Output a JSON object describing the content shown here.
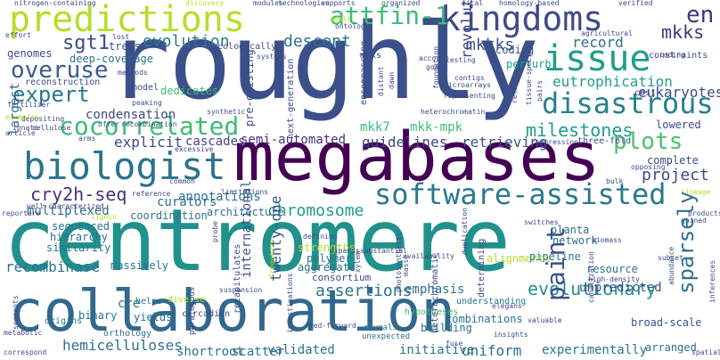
{
  "palette": {
    "background": "#ffffff",
    "dark_purple": "#440154",
    "indigo": "#3e4989",
    "blue": "#3b528b",
    "steel_blue": "#31688e",
    "teal": "#21918c",
    "green": "#3dbc74",
    "lime": "#b5de2b"
  },
  "words": {
    "roughly": "roughly",
    "centromere": "centromere",
    "megabases": "megabases",
    "collaboration": "collaboration",
    "biologist": "biologist",
    "predictions": "predictions",
    "kingdoms": "kingdoms",
    "software_assisted": "software-assisted",
    "disastrous": "disastrous",
    "issue": "issue",
    "cocorrelated": "cocorrelated",
    "overuse": "overuse",
    "expert": "expert",
    "attfin_1": "attfin-1",
    "cry2h_seq": "cry2h-seq",
    "plots": "plots",
    "paint": "paint",
    "sparsely": "sparsely",
    "evolutionary": "evolutionary",
    "milestones": "milestones",
    "eutrophication": "eutrophication",
    "sgt1": "sgt1",
    "en": "en",
    "mkks": "mkks",
    "mkkks": "mkkks",
    "evolution": "evolution",
    "descent": "descent",
    "chromosome": "chromosome",
    "project": "project",
    "assertions": "assertions",
    "hemicelluloses": "hemicelluloses",
    "revolution": "revolution",
    "eukaryotes": "eukaryotes",
    "semi_automated": "semi-automated",
    "recombinase": "recombinase",
    "guidelines": "guidelines",
    "retrieving": "retrieving",
    "explicit": "explicit",
    "condensation": "condensation",
    "cascades": "cascades",
    "multiplexed": "multiplexed",
    "uniform": "uniform",
    "initiative": "initiative",
    "scatter": "scatter",
    "validated": "validated",
    "shortroot": "shortroot",
    "experimentally": "experimentally",
    "twenty_one": "twenty-one",
    "international": "international",
    "mkk7": "mkk7",
    "mkk_mpk": "mkk-mpk",
    "perturb": "perturb",
    "coding": "coding",
    "record": "record",
    "lowered": "lowered",
    "complete": "complete",
    "genomes": "genomes",
    "largest": "largest",
    "curators": "curators",
    "annotations": "annotations",
    "aggregate": "aggregate",
    "strengths": "strengths",
    "polymer": "polymer",
    "consortium": "consortium",
    "emphasis": "emphasis",
    "combinations": "combinations",
    "building": "building",
    "alignments": "alignments",
    "pipeline": "pipeline",
    "resource": "resource",
    "network": "network",
    "planta": "planta",
    "cre": "cre",
    "yields": "yields",
    "binary": "binary",
    "massively": "massively",
    "similarity": "similarity",
    "hierarchy": "hierarchy",
    "sequenced": "sequenced",
    "architecture": "architecture",
    "coordination": "coordination",
    "unpredicted": "unpredicted",
    "broad_scale": "broad-scale",
    "diverse": "diverse",
    "helps": "helps",
    "hypotheses": "hypotheses",
    "understanding": "understanding",
    "reveals": "reveals",
    "unexpected": "unexpected",
    "arranged": "arranged",
    "orthology": "orthology",
    "circadian": "circadian",
    "origins": "origins",
    "deep_coverage": "deep-coverage",
    "trees": "trees",
    "ecologically": "ecologically",
    "dedicates": "dedicates",
    "model": "model",
    "reconstruction": "reconstruction",
    "nitrogen_containing": "nitrogen-containing",
    "fertilizer": "fertilizer",
    "depositing": "depositing",
    "innate": "innate",
    "cellulose": "cellulose",
    "examples": "examples",
    "coding_small": "coding",
    "technologies": "technologies",
    "modules": "modules",
    "supports": "supports",
    "organized": "organized",
    "vital": "vital",
    "homology_based": "homology-based",
    "verified": "verified",
    "agricultural": "agricultural",
    "constraints": "constraints",
    "microarrays": "microarrays",
    "contigs": "contigs",
    "testing": "testing",
    "representing": "representing",
    "goal": "goal",
    "account": "account",
    "mpks": "mpks",
    "systems": "systems",
    "ontology": "ontology",
    "adult": "adult",
    "discovery": "discovery",
    "lost": "lost",
    "effort": "effort",
    "methods": "methods",
    "peaking": "peaking",
    "synthetic": "synthetic",
    "heterochromatin": "heterochromatin",
    "compression": "compression",
    "three_fold": "three-fold",
    "cost": "cost",
    "recombination": "recombination",
    "offer": "offer",
    "arms": "arms",
    "excessive": "excessive",
    "well_characterized": "well-characterized",
    "reference": "reference",
    "common": "common",
    "limitations": "limitations",
    "reporters": "reporters",
    "lignin": "lignin",
    "defining": "defining",
    "expands": "expands",
    "substantial": "substantial",
    "availability": "availability",
    "suspension": "suspension",
    "feed_forward": "feed-forward",
    "fuse": "fuse",
    "biomass": "biomass",
    "high_density": "high-density",
    "subset": "subset",
    "gained": "gained",
    "products": "products",
    "switches": "switches",
    "opposing": "opposing",
    "bulk": "bulk",
    "lineage": "lineage",
    "valuable": "valuable",
    "elegans": "elegans",
    "insights": "insights",
    "correspond": "correspond",
    "metabolic": "metabolic",
    "article": "article",
    "spatially": "spatially",
    "pre_existing": "pre-existing",
    "paralogous": "paralogous",
    "encompassing": "encompassing",
    "foundation": "foundation",
    "distant": "distant",
    "dawn": "dawn",
    "next_generation": "next-generation",
    "tissue_specific": "tissue-specific",
    "relies": "relies",
    "pairs": "pairs",
    "recapitulates": "recapitulates",
    "probe": "probe",
    "frequency": "frequency",
    "xylem": "xylem",
    "photosynthetic": "photosynthetic",
    "masse": "masse",
    "heterochromatic": "heterochromatic",
    "determining": "determining",
    "duplication": "duplication",
    "investigations": "investigations",
    "inferences": "inferences",
    "segments": "segments",
    "abundance": "abundance",
    "canalization": "canalization"
  }
}
